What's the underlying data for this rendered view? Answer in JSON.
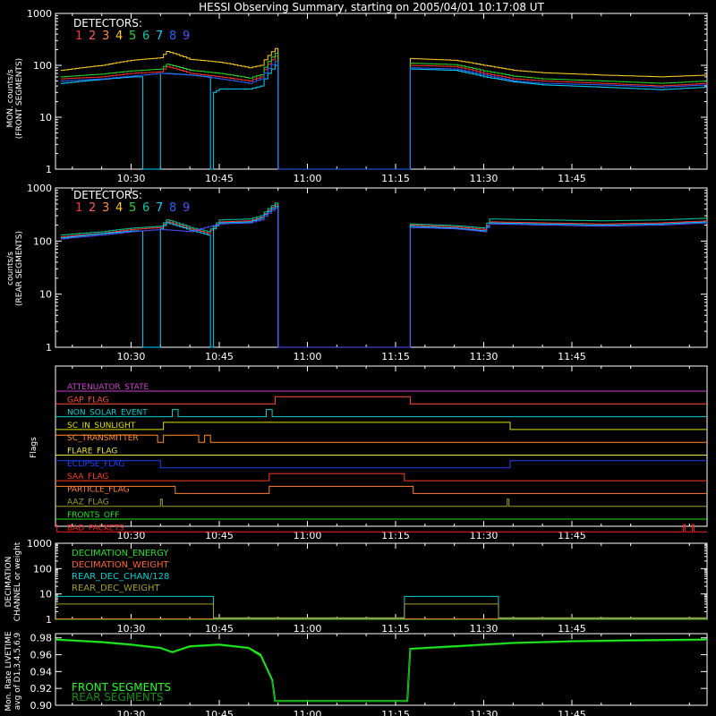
{
  "page": {
    "title": "HESSI Observing Summary, starting on 2005/04/01 10:17:08 UT"
  },
  "time_ticks": [
    "10:30",
    "10:45",
    "11:00",
    "11:15",
    "11:30",
    "11:45"
  ],
  "time_tick_minutes": [
    30,
    45,
    60,
    75,
    90,
    105
  ],
  "time_range_minutes": [
    17.13,
    128.0
  ],
  "colors": {
    "axes": "#ffffff",
    "detectors": [
      "#ff3030",
      "#ff5a5a",
      "#ff8c3c",
      "#ffd21e",
      "#28dc28",
      "#00c8a0",
      "#00d2ff",
      "#2860ff",
      "#5050ff"
    ],
    "flags": {
      "ATTENUATOR_STATE": "#d040d0",
      "GAP_FLAG": "#ff5030",
      "NON_SOLAR_EVENT": "#00d0d0",
      "SC_IN_SUNLIGHT": "#e0e000",
      "SC_TRANSMITTER": "#ff8c20",
      "FLARE_FLAG": "#e8e830",
      "ECLIPSE_FLAG": "#2040ff",
      "SAA_FLAG": "#ff3c20",
      "PARTICLE_FLAG": "#ff8030",
      "AAZ_FLAG": "#a0a020",
      "FRONTS_OFF": "#20e020",
      "BAD_PACKETS": "#ff2020"
    },
    "decimation": [
      "#20e020",
      "#ff6030",
      "#00d0d0",
      "#a0a020"
    ],
    "livetime": [
      "#20ff20",
      "#109010"
    ]
  },
  "panel_front": {
    "ylabel": [
      "MON. counts/s",
      "(FRONT SEGMENTS)"
    ],
    "legend_title": "DETECTORS:",
    "detector_numbers": [
      "1",
      "2",
      "3",
      "4",
      "5",
      "6",
      "7",
      "8",
      "9"
    ],
    "yticks": [
      "1",
      "10",
      "100",
      "1000"
    ],
    "yrange": [
      1,
      1000
    ],
    "log": true
  },
  "panel_rear": {
    "ylabel": [
      "counts/s",
      "(REAR SEGMENTS)"
    ],
    "legend_title": "DETECTORS:",
    "detector_numbers": [
      "1",
      "2",
      "3",
      "4",
      "5",
      "6",
      "7",
      "8",
      "9"
    ],
    "yticks": [
      "1",
      "10",
      "100",
      "1000"
    ],
    "yrange": [
      1,
      1000
    ],
    "log": true
  },
  "panel_flags": {
    "ylabel": "Flags",
    "flags": [
      {
        "name": "ATTENUATOR_STATE",
        "label": "ATTENUATOR_STATE",
        "segments": [
          [
            17.13,
            128,
            0
          ]
        ]
      },
      {
        "name": "GAP_FLAG",
        "label": "GAP_FLAG",
        "segments": [
          [
            17.13,
            54.5,
            0
          ],
          [
            54.5,
            77.5,
            1
          ],
          [
            77.5,
            128,
            0
          ]
        ]
      },
      {
        "name": "NON_SOLAR_EVENT",
        "label": "NON_SOLAR_EVENT",
        "segments": [
          [
            17.13,
            37,
            0
          ],
          [
            37,
            38,
            1
          ],
          [
            38,
            53,
            0
          ],
          [
            53,
            54,
            1
          ],
          [
            54,
            128,
            0
          ]
        ]
      },
      {
        "name": "SC_IN_SUNLIGHT",
        "label": "SC_IN_SUNLIGHT",
        "segments": [
          [
            17.13,
            35.5,
            0
          ],
          [
            35.5,
            94.5,
            1
          ],
          [
            94.5,
            128,
            0
          ]
        ]
      },
      {
        "name": "SC_TRANSMITTER",
        "label": "SC_TRANSMITTER",
        "segments": [
          [
            17.13,
            34.5,
            1
          ],
          [
            34.5,
            35.5,
            0
          ],
          [
            35.5,
            41.5,
            1
          ],
          [
            41.5,
            42.5,
            0
          ],
          [
            42.5,
            43.5,
            1
          ],
          [
            43.5,
            44,
            0
          ],
          [
            44,
            128,
            0
          ]
        ]
      },
      {
        "name": "FLARE_FLAG",
        "label": "FLARE_FLAG",
        "segments": [
          [
            17.13,
            128,
            0
          ]
        ]
      },
      {
        "name": "ECLIPSE_FLAG",
        "label": "ECLIPSE_FLAG",
        "segments": [
          [
            17.13,
            35,
            1
          ],
          [
            35,
            94.5,
            0
          ],
          [
            94.5,
            128,
            1
          ]
        ]
      },
      {
        "name": "SAA_FLAG",
        "label": "SAA_FLAG",
        "segments": [
          [
            17.13,
            53.5,
            0
          ],
          [
            53.5,
            76.5,
            1
          ],
          [
            76.5,
            128,
            0
          ]
        ]
      },
      {
        "name": "PARTICLE_FLAG",
        "label": "PARTICLE_FLAG",
        "segments": [
          [
            17.13,
            37.5,
            1
          ],
          [
            37.5,
            53.5,
            0
          ],
          [
            53.5,
            78,
            1
          ],
          [
            78,
            128,
            0
          ]
        ]
      },
      {
        "name": "AAZ_FLAG",
        "label": "AAZ_FLAG",
        "segments": [
          [
            17.13,
            35,
            0
          ],
          [
            35,
            35.3,
            1
          ],
          [
            35.3,
            94,
            0
          ],
          [
            94,
            94.3,
            1
          ],
          [
            94.3,
            128,
            0
          ]
        ]
      },
      {
        "name": "FRONTS_OFF",
        "label": "FRONTS_OFF",
        "segments": [
          [
            17.13,
            128,
            0
          ]
        ]
      },
      {
        "name": "BAD_PACKETS",
        "label": "BAD_PACKETS",
        "segments": [
          [
            17.13,
            17.4,
            1
          ],
          [
            17.4,
            124,
            0
          ],
          [
            124,
            124.3,
            1
          ],
          [
            124.3,
            125.5,
            0
          ],
          [
            125.5,
            125.8,
            1
          ],
          [
            125.8,
            128,
            0
          ]
        ]
      }
    ]
  },
  "panel_decimation": {
    "ylabel": [
      "DECIMATION",
      "CHANNEL or weight"
    ],
    "legend": [
      "DECIMATION_ENERGY",
      "DECIMATION_WEIGHT",
      "REAR_DEC_CHAN/128",
      "REAR_DEC_WEIGHT"
    ],
    "yticks": [
      "1",
      "10",
      "100",
      "1000"
    ],
    "yrange": [
      1,
      1000
    ],
    "log": true
  },
  "panel_livetime": {
    "ylabel": [
      "Mon. Rate LIVETIME",
      "avg of D1,3,4,5,6,9"
    ],
    "legend": [
      "FRONT SEGMENTS",
      "REAR SEGMENTS"
    ],
    "yticks": [
      "0.90",
      "0.92",
      "0.94",
      "0.96",
      "0.98"
    ],
    "yrange": [
      0.9,
      0.985
    ]
  },
  "chart_data": [
    {
      "type": "line",
      "title": "HESSI Observing Summary, starting on 2005/04/01 10:17:08 UT",
      "ylabel": "MON. counts/s (FRONT SEGMENTS)",
      "ylim": [
        1,
        1000
      ],
      "log_y": true,
      "x_unit": "UT time (minutes after 10:00)",
      "series": [
        {
          "name": "1",
          "x": [
            18,
            25,
            30,
            35,
            36,
            40,
            45,
            50,
            52,
            54.5,
            55,
            77,
            77.5,
            85,
            90,
            95,
            100,
            110,
            120,
            128
          ],
          "values": [
            55,
            60,
            70,
            75,
            95,
            70,
            60,
            50,
            60,
            150,
            1,
            1,
            100,
            95,
            70,
            55,
            50,
            45,
            40,
            45
          ]
        },
        {
          "name": "4",
          "x": [
            18,
            25,
            30,
            35,
            36,
            40,
            45,
            50,
            52,
            54.5,
            55,
            77,
            77.5,
            85,
            90,
            95,
            100,
            110,
            120,
            128
          ],
          "values": [
            80,
            100,
            125,
            140,
            185,
            130,
            115,
            90,
            100,
            210,
            1,
            1,
            135,
            125,
            100,
            80,
            72,
            65,
            60,
            65
          ]
        },
        {
          "name": "5",
          "x": [
            18,
            25,
            30,
            35,
            36,
            40,
            45,
            50,
            52,
            54.5,
            55,
            77,
            77.5,
            85,
            90,
            95,
            100,
            110,
            120,
            128
          ],
          "values": [
            60,
            68,
            78,
            85,
            105,
            80,
            70,
            57,
            66,
            170,
            1,
            1,
            110,
            103,
            78,
            62,
            55,
            50,
            45,
            50
          ]
        },
        {
          "name": "7",
          "x": [
            18,
            30,
            31,
            32,
            34,
            35,
            36,
            40,
            43,
            43.5,
            44,
            45,
            50,
            52,
            54.5,
            55,
            77,
            77.5,
            85,
            90,
            95,
            100,
            110,
            120,
            128
          ],
          "values": [
            45,
            60,
            60,
            1,
            1,
            70,
            70,
            65,
            60,
            1,
            30,
            35,
            35,
            40,
            100,
            1,
            1,
            85,
            80,
            60,
            48,
            42,
            38,
            34,
            38
          ]
        },
        {
          "name": "8",
          "x": [
            18,
            25,
            30,
            35,
            40,
            45,
            50,
            52,
            54.5,
            55,
            77,
            77.5,
            85,
            90,
            95,
            100,
            110,
            120,
            128
          ],
          "values": [
            50,
            55,
            62,
            70,
            65,
            55,
            45,
            55,
            120,
            1,
            1,
            90,
            85,
            65,
            50,
            45,
            42,
            38,
            42
          ]
        }
      ]
    },
    {
      "type": "line",
      "ylabel": "counts/s (REAR SEGMENTS)",
      "ylim": [
        1,
        1000
      ],
      "log_y": true,
      "x_unit": "UT time (minutes after 10:00)",
      "series": [
        {
          "name": "1",
          "x": [
            18,
            25,
            30,
            35,
            36,
            40,
            43,
            44,
            45,
            50,
            52,
            54.5,
            55,
            77,
            77.5,
            85,
            90,
            91,
            100,
            110,
            120,
            128
          ],
          "values": [
            120,
            140,
            165,
            180,
            230,
            170,
            140,
            180,
            230,
            240,
            280,
            480,
            1,
            1,
            200,
            185,
            165,
            230,
            220,
            210,
            220,
            240
          ]
        },
        {
          "name": "6",
          "x": [
            18,
            25,
            30,
            35,
            36,
            40,
            43,
            44,
            45,
            50,
            52,
            54.5,
            55,
            77,
            77.5,
            85,
            90,
            91,
            100,
            110,
            120,
            128
          ],
          "values": [
            130,
            150,
            175,
            190,
            250,
            180,
            150,
            190,
            250,
            260,
            300,
            520,
            1,
            1,
            210,
            195,
            175,
            260,
            250,
            240,
            250,
            270
          ]
        },
        {
          "name": "7",
          "x": [
            18,
            30,
            31,
            32,
            34,
            35,
            36,
            40,
            43,
            43.5,
            44,
            45,
            50,
            52,
            54.5,
            55,
            77,
            77.5,
            85,
            90,
            91,
            100,
            110,
            120,
            128
          ],
          "values": [
            115,
            155,
            155,
            1,
            1,
            170,
            220,
            160,
            130,
            1,
            170,
            220,
            230,
            270,
            450,
            1,
            1,
            190,
            175,
            155,
            220,
            210,
            200,
            210,
            230
          ]
        },
        {
          "name": "9",
          "x": [
            18,
            25,
            30,
            35,
            40,
            45,
            50,
            52,
            54.5,
            55,
            77,
            77.5,
            85,
            90,
            91,
            100,
            110,
            120,
            128
          ],
          "values": [
            110,
            130,
            150,
            165,
            150,
            210,
            220,
            250,
            420,
            1,
            1,
            180,
            170,
            150,
            210,
            200,
            190,
            200,
            220
          ]
        }
      ]
    },
    {
      "type": "line",
      "ylabel": "DECIMATION CHANNEL or weight",
      "ylim": [
        1,
        1000
      ],
      "log_y": true,
      "x_unit": "UT time (minutes after 10:00)",
      "series": [
        {
          "name": "DECIMATION_ENERGY",
          "x": [
            17.13,
            128
          ],
          "values": [
            1,
            1
          ]
        },
        {
          "name": "DECIMATION_WEIGHT",
          "x": [
            17.13,
            128
          ],
          "values": [
            1,
            1
          ]
        },
        {
          "name": "REAR_DEC_CHAN/128",
          "x": [
            17.13,
            44,
            44.01,
            76.5,
            76.51,
            92.5,
            92.51,
            128
          ],
          "values": [
            8,
            8,
            1,
            1,
            8,
            8,
            1,
            1
          ]
        },
        {
          "name": "REAR_DEC_WEIGHT",
          "x": [
            17.13,
            44,
            44.01,
            76.5,
            76.51,
            92.5,
            92.51,
            128
          ],
          "values": [
            4,
            4,
            1,
            1,
            4,
            4,
            1,
            1
          ]
        }
      ]
    },
    {
      "type": "line",
      "ylabel": "Mon. Rate LIVETIME avg of D1,3,4,5,6,9",
      "ylim": [
        0.9,
        0.985
      ],
      "x_unit": "UT time (minutes after 10:00)",
      "series": [
        {
          "name": "FRONT SEGMENTS",
          "x": [
            17.13,
            25,
            30,
            35,
            37,
            40,
            45,
            50,
            52,
            54,
            54.5,
            77,
            77.5,
            85,
            95,
            105,
            115,
            128
          ],
          "values": [
            0.978,
            0.975,
            0.972,
            0.968,
            0.963,
            0.97,
            0.972,
            0.968,
            0.96,
            0.93,
            0.905,
            0.905,
            0.967,
            0.97,
            0.974,
            0.976,
            0.977,
            0.978
          ]
        },
        {
          "name": "REAR SEGMENTS",
          "x": [
            17.13,
            25,
            30,
            35,
            37,
            40,
            45,
            50,
            52,
            54,
            54.5,
            77,
            77.5,
            85,
            95,
            105,
            115,
            128
          ],
          "values": [
            0.977,
            0.974,
            0.971,
            0.967,
            0.962,
            0.969,
            0.971,
            0.967,
            0.958,
            0.928,
            0.905,
            0.905,
            0.966,
            0.969,
            0.973,
            0.975,
            0.976,
            0.977
          ]
        }
      ]
    }
  ]
}
